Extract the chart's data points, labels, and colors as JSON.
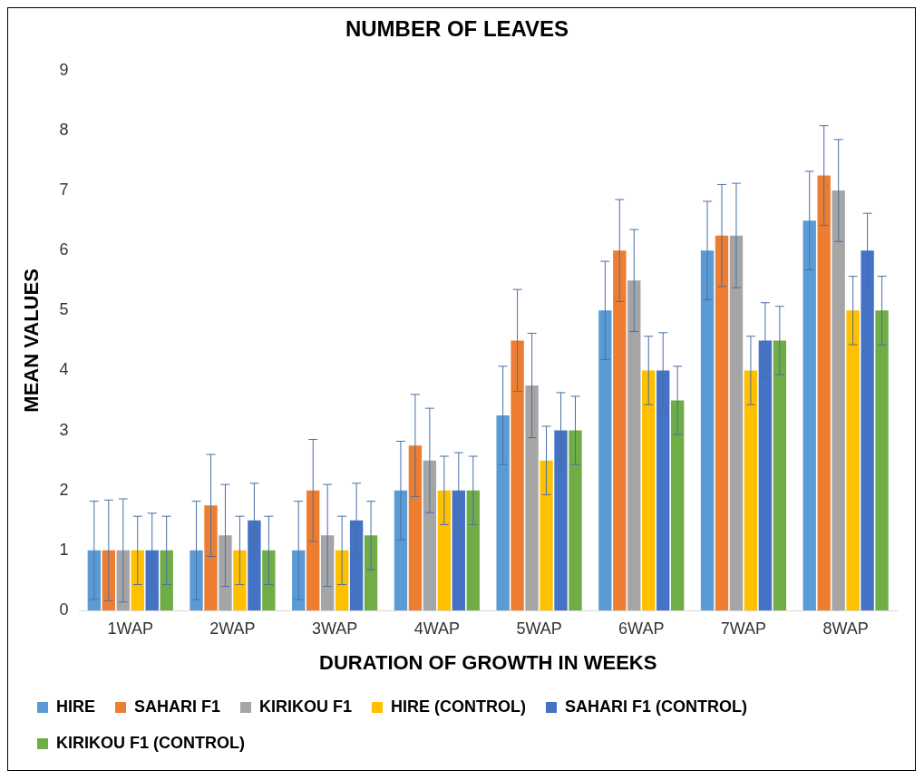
{
  "chart_data": {
    "type": "bar",
    "title": "NUMBER OF LEAVES",
    "xlabel": "DURATION OF GROWTH IN WEEKS",
    "ylabel": "MEAN VALUES",
    "categories": [
      "1WAP",
      "2WAP",
      "3WAP",
      "4WAP",
      "5WAP",
      "6WAP",
      "7WAP",
      "8WAP"
    ],
    "series": [
      {
        "name": "HIRE",
        "color": "#5b9bd5",
        "values": [
          1,
          1,
          1,
          2,
          3.25,
          5,
          6,
          6.5
        ],
        "errors": [
          0.82,
          0.82,
          0.82,
          0.82,
          0.82,
          0.82,
          0.82,
          0.82
        ]
      },
      {
        "name": "SAHARI F1",
        "color": "#ed7d31",
        "values": [
          1,
          1.75,
          2,
          2.75,
          4.5,
          6,
          6.25,
          7.25
        ],
        "errors": [
          0.84,
          0.85,
          0.85,
          0.85,
          0.85,
          0.85,
          0.85,
          0.83
        ]
      },
      {
        "name": "KIRIKOU F1",
        "color": "#a5a5a5",
        "values": [
          1,
          1.25,
          1.25,
          2.5,
          3.75,
          5.5,
          6.25,
          7
        ],
        "errors": [
          0.86,
          0.85,
          0.85,
          0.87,
          0.87,
          0.85,
          0.87,
          0.85
        ]
      },
      {
        "name": "HIRE (CONTROL)",
        "color": "#ffc000",
        "values": [
          1,
          1,
          1,
          2,
          2.5,
          4,
          4,
          5
        ],
        "errors": [
          0.57,
          0.57,
          0.57,
          0.57,
          0.57,
          0.57,
          0.57,
          0.57
        ]
      },
      {
        "name": "SAHARI F1 (CONTROL)",
        "color": "#4472c4",
        "values": [
          1,
          1.5,
          1.5,
          2,
          3,
          4,
          4.5,
          6
        ],
        "errors": [
          0.62,
          0.62,
          0.62,
          0.63,
          0.63,
          0.63,
          0.63,
          0.62
        ]
      },
      {
        "name": "KIRIKOU F1 (CONTROL)",
        "color": "#70ad47",
        "values": [
          1,
          1,
          1.25,
          2,
          3,
          3.5,
          4.5,
          5
        ],
        "errors": [
          0.57,
          0.57,
          0.57,
          0.57,
          0.57,
          0.57,
          0.57,
          0.57
        ]
      }
    ],
    "ylim": [
      0,
      9
    ],
    "yticks": [
      0,
      1,
      2,
      3,
      4,
      5,
      6,
      7,
      8,
      9
    ],
    "grid": false,
    "legend": "bottom"
  }
}
